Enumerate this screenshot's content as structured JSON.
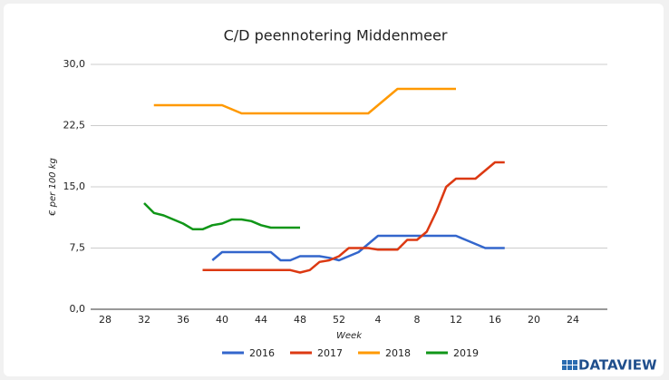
{
  "chart_data": {
    "type": "line",
    "title": "C/D peennotering Middenmeer",
    "x_label": "Week",
    "y_label": "€ per 100 kg",
    "logo": "DATAVIEW",
    "categories": [
      "28",
      null,
      null,
      null,
      "32",
      null,
      null,
      null,
      "36",
      null,
      null,
      null,
      "40",
      null,
      null,
      null,
      "44",
      null,
      null,
      null,
      "48",
      null,
      null,
      null,
      "52",
      null,
      null,
      null,
      "4",
      null,
      null,
      null,
      "8",
      null,
      null,
      null,
      "12",
      null,
      null,
      null,
      "16",
      null,
      null,
      null,
      "20",
      null,
      null,
      null,
      "24"
    ],
    "ylim": [
      0,
      30
    ],
    "yticks": [
      {
        "value": 0,
        "label": "0,0"
      },
      {
        "value": 7.5,
        "label": "7,5"
      },
      {
        "value": 15,
        "label": "15,0"
      },
      {
        "value": 22.5,
        "label": "22,5"
      },
      {
        "value": 30,
        "label": "30,0"
      }
    ],
    "grid": true,
    "legend": "bottom",
    "series": [
      {
        "name": "2016",
        "color": "#3366cc",
        "values": [
          null,
          null,
          null,
          null,
          null,
          null,
          null,
          null,
          null,
          null,
          null,
          6,
          7,
          7,
          7,
          7,
          7,
          7,
          6,
          6,
          6.5,
          6.5,
          6.5,
          6.3,
          6,
          6.5,
          7,
          8,
          9,
          9,
          9,
          9,
          9,
          9,
          9,
          9,
          9,
          8.5,
          8,
          7.5,
          7.5,
          7.5,
          null,
          null,
          null,
          null,
          null,
          null,
          null
        ]
      },
      {
        "name": "2017",
        "color": "#dc3912",
        "values": [
          null,
          null,
          null,
          null,
          null,
          null,
          null,
          null,
          null,
          null,
          4.8,
          4.8,
          4.8,
          4.8,
          4.8,
          4.8,
          4.8,
          4.8,
          4.8,
          4.8,
          4.5,
          4.8,
          5.8,
          6,
          6.5,
          7.5,
          7.5,
          7.5,
          7.3,
          7.3,
          7.3,
          8.5,
          8.5,
          9.5,
          12,
          15,
          16,
          16,
          16,
          17,
          18,
          18,
          null,
          null,
          null,
          null,
          null,
          null,
          null
        ]
      },
      {
        "name": "2018",
        "color": "#ff9900",
        "values": [
          null,
          null,
          null,
          null,
          null,
          25,
          25,
          25,
          25,
          25,
          25,
          25,
          25,
          24.5,
          24,
          24,
          24,
          24,
          24,
          24,
          24,
          24,
          24,
          24,
          24,
          24,
          24,
          24,
          25,
          26,
          27,
          27,
          27,
          27,
          27,
          27,
          27,
          null,
          null,
          null,
          null,
          null,
          null,
          null,
          null,
          null,
          null,
          null,
          null
        ]
      },
      {
        "name": "2019",
        "color": "#109618",
        "values": [
          null,
          null,
          null,
          null,
          13,
          11.8,
          11.5,
          11,
          10.5,
          9.8,
          9.8,
          10.3,
          10.5,
          11,
          11,
          10.8,
          10.3,
          10,
          10,
          10,
          10,
          null,
          null,
          null,
          null,
          null,
          null,
          null,
          null,
          null,
          null,
          null,
          null,
          null,
          null,
          null,
          null,
          null,
          null,
          null,
          null,
          null,
          null,
          null,
          null,
          null,
          null,
          null,
          null
        ]
      }
    ]
  }
}
